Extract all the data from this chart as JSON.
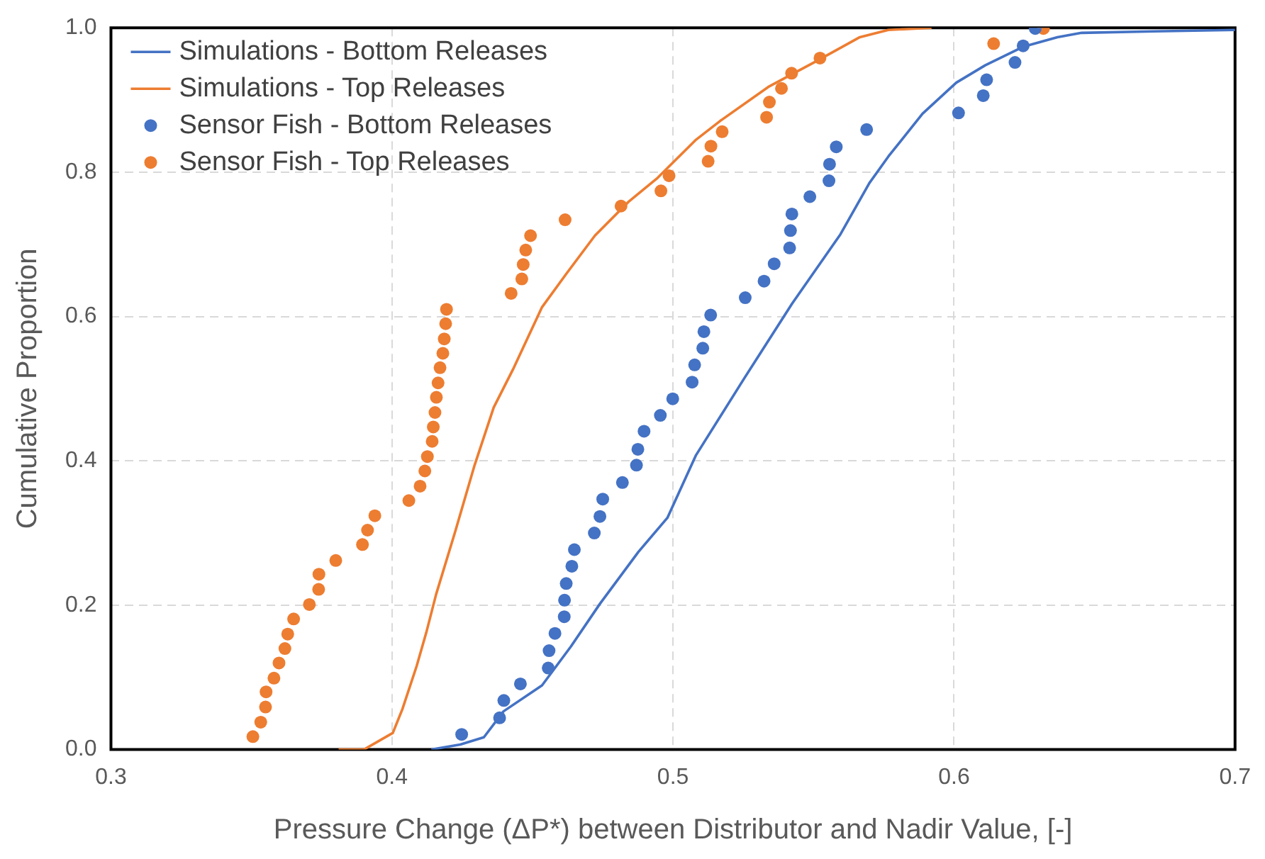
{
  "chart_data": {
    "type": "scatter",
    "xlabel": "Pressure Change (ΔP*) between Distributor and Nadir Value, [-]",
    "ylabel": "Cumulative Proportion",
    "xlim": [
      0.3,
      0.7
    ],
    "xticks": [
      0.3,
      0.4,
      0.5,
      0.6,
      0.7
    ],
    "ylim": [
      0,
      1
    ],
    "yticks": [
      {
        "value": 0,
        "label": "0.0"
      },
      0.2,
      0.4,
      0.6,
      0.8,
      {
        "value": 1,
        "label": "1.0"
      }
    ],
    "grid": true,
    "legend": "top left",
    "marker": "circle",
    "series": [
      {
        "name": "Simulations - Bottom Releases",
        "type": "line",
        "marker": "none",
        "color": "#4472c4",
        "x": [
          0.414,
          0.4243,
          0.4327,
          0.4397,
          0.4534,
          0.4637,
          0.474,
          0.4877,
          0.498,
          0.5082,
          0.5253,
          0.5424,
          0.5596,
          0.5699,
          0.5767,
          0.5888,
          0.6008,
          0.6111,
          0.6248,
          0.6368,
          0.6454,
          0.671,
          0.7
        ],
        "values": [
          0,
          0.007,
          0.017,
          0.053,
          0.089,
          0.143,
          0.202,
          0.274,
          0.321,
          0.408,
          0.514,
          0.618,
          0.714,
          0.785,
          0.822,
          0.881,
          0.924,
          0.948,
          0.974,
          0.987,
          0.993,
          0.995,
          0.997
        ]
      },
      {
        "name": "Simulations - Top Releases",
        "type": "line",
        "marker": "none",
        "color": "#ed7d31",
        "x": [
          0.381,
          0.39,
          0.4003,
          0.4037,
          0.4088,
          0.4122,
          0.4157,
          0.4225,
          0.4294,
          0.4362,
          0.4431,
          0.4534,
          0.462,
          0.4722,
          0.4842,
          0.4945,
          0.5082,
          0.5168,
          0.5339,
          0.5511,
          0.5665,
          0.5766,
          0.592
        ],
        "values": [
          0,
          0,
          0.023,
          0.056,
          0.116,
          0.162,
          0.215,
          0.302,
          0.394,
          0.474,
          0.527,
          0.613,
          0.659,
          0.712,
          0.759,
          0.792,
          0.845,
          0.871,
          0.918,
          0.954,
          0.987,
          0.997,
          1
        ]
      },
      {
        "name": "Sensor Fish - Bottom Releases",
        "type": "scatter",
        "color": "#4472c4",
        "x": [
          0.4248,
          0.4383,
          0.4398,
          0.4457,
          0.4556,
          0.4559,
          0.458,
          0.4613,
          0.4614,
          0.462,
          0.464,
          0.4649,
          0.472,
          0.474,
          0.475,
          0.482,
          0.487,
          0.4875,
          0.4897,
          0.4955,
          0.4999,
          0.5068,
          0.5077,
          0.5106,
          0.511,
          0.5134,
          0.5257,
          0.5324,
          0.536,
          0.5415,
          0.5418,
          0.5423,
          0.5487,
          0.5555,
          0.5557,
          0.5581,
          0.5689,
          0.6016,
          0.6104,
          0.6116,
          0.6217,
          0.6246,
          0.6289
        ],
        "values": [
          0.021,
          0.044,
          0.068,
          0.091,
          0.113,
          0.137,
          0.161,
          0.184,
          0.207,
          0.23,
          0.254,
          0.277,
          0.3,
          0.323,
          0.347,
          0.37,
          0.394,
          0.416,
          0.441,
          0.463,
          0.486,
          0.509,
          0.533,
          0.556,
          0.579,
          0.602,
          0.626,
          0.649,
          0.673,
          0.695,
          0.719,
          0.742,
          0.766,
          0.788,
          0.811,
          0.835,
          0.859,
          0.882,
          0.906,
          0.928,
          0.952,
          0.975,
          0.999
        ]
      },
      {
        "name": "Sensor Fish - Top Releases",
        "type": "scatter",
        "color": "#ed7d31",
        "x": [
          0.3505,
          0.3533,
          0.355,
          0.3552,
          0.358,
          0.3598,
          0.3619,
          0.3629,
          0.365,
          0.3706,
          0.3739,
          0.374,
          0.38,
          0.3895,
          0.3913,
          0.3939,
          0.406,
          0.41,
          0.4117,
          0.4126,
          0.4143,
          0.4147,
          0.4153,
          0.4158,
          0.4164,
          0.4171,
          0.4181,
          0.4186,
          0.4191,
          0.4194,
          0.4424,
          0.4462,
          0.4467,
          0.4476,
          0.4493,
          0.4616,
          0.4815,
          0.4957,
          0.4986,
          0.5125,
          0.5135,
          0.5175,
          0.5333,
          0.5343,
          0.5386,
          0.5422,
          0.5523,
          0.6141,
          0.6318
        ],
        "values": [
          0.018,
          0.038,
          0.059,
          0.08,
          0.099,
          0.12,
          0.14,
          0.16,
          0.181,
          0.201,
          0.222,
          0.243,
          0.262,
          0.284,
          0.304,
          0.324,
          0.345,
          0.365,
          0.386,
          0.406,
          0.427,
          0.447,
          0.467,
          0.488,
          0.508,
          0.529,
          0.549,
          0.569,
          0.59,
          0.61,
          0.632,
          0.652,
          0.672,
          0.692,
          0.712,
          0.734,
          0.753,
          0.774,
          0.795,
          0.815,
          0.836,
          0.856,
          0.876,
          0.897,
          0.916,
          0.937,
          0.958,
          0.978,
          0.999
        ]
      }
    ]
  }
}
